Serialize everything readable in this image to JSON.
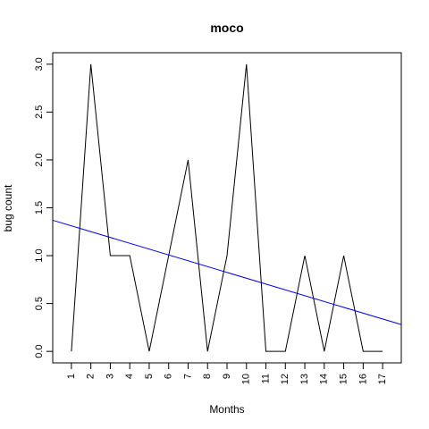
{
  "chart_data": {
    "type": "line",
    "title": "moco",
    "xlabel": "Months",
    "ylabel": "bug count",
    "x": [
      1,
      2,
      3,
      4,
      5,
      6,
      7,
      8,
      9,
      10,
      11,
      12,
      13,
      14,
      15,
      16,
      17
    ],
    "x_tick_labels": [
      "1",
      "2",
      "3",
      "4",
      "5",
      "6",
      "7",
      "8",
      "9",
      "10",
      "11",
      "12",
      "13",
      "14",
      "15",
      "16",
      "17"
    ],
    "y_tick_labels": [
      "0.0",
      "0.5",
      "1.0",
      "1.5",
      "2.0",
      "2.5",
      "3.0"
    ],
    "y_ticks": [
      0,
      0.5,
      1.0,
      1.5,
      2.0,
      2.5,
      3.0
    ],
    "xlim": [
      0.04,
      17.96
    ],
    "ylim": [
      -0.12,
      3.12
    ],
    "grid": false,
    "series": [
      {
        "color": "#000000",
        "values": [
          0,
          3,
          1,
          1,
          0,
          1,
          2,
          0,
          1,
          3,
          0,
          0,
          1,
          0,
          1,
          0,
          0
        ]
      }
    ],
    "trendline": {
      "color": "#0000ff",
      "x": [
        0.04,
        17.96
      ],
      "values": [
        1.37,
        0.28
      ]
    }
  }
}
